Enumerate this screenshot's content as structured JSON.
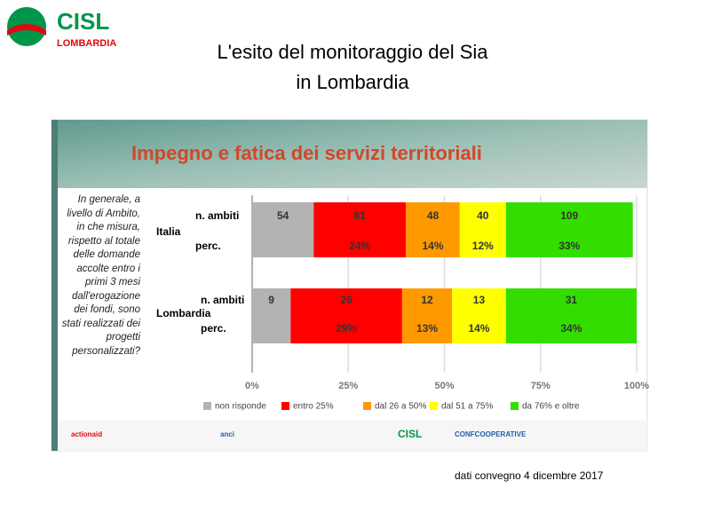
{
  "slide_title": [
    "L'esito del monitoraggio del Sia",
    "in Lombardia"
  ],
  "logo": {
    "name": "CISL",
    "region": "LOMBARDIA"
  },
  "footer": "dati convegno  4 dicembre 2017",
  "chart_data": {
    "type": "bar",
    "orientation": "horizontal",
    "stacked": true,
    "title": "Impegno e fatica dei servizi territoriali",
    "question": "In generale, a livello di Ambito, in che misura, rispetto al totale delle domande accolte entro i primi 3 mesi dall'erogazione dei fondi, sono stati realizzati dei progetti personalizzati?",
    "categories": [
      "Italia",
      "Lombardia"
    ],
    "count_label": "n. ambiti",
    "percent_label": "perc.",
    "xlim": [
      0,
      100
    ],
    "xticks": [
      {
        "value": 0,
        "label": "0%"
      },
      {
        "value": 25,
        "label": "25%"
      },
      {
        "value": 50,
        "label": "50%"
      },
      {
        "value": 75,
        "label": "75%"
      },
      {
        "value": 100,
        "label": "100%"
      }
    ],
    "grid": true,
    "series": [
      {
        "name": "non risponde",
        "color": "#b3b3b3",
        "values": [
          16,
          10
        ],
        "counts": [
          54,
          9
        ],
        "value_labels": [
          null,
          null
        ]
      },
      {
        "name": "entro 25%",
        "color": "#ff0000",
        "values": [
          24,
          29
        ],
        "counts": [
          81,
          26
        ],
        "value_labels": [
          "24%",
          "29%"
        ]
      },
      {
        "name": "dal 26 a 50%",
        "color": "#ff9900",
        "values": [
          14,
          13
        ],
        "counts": [
          48,
          12
        ],
        "value_labels": [
          "14%",
          "13%"
        ]
      },
      {
        "name": "dal 51 a 75%",
        "color": "#ffff00",
        "values": [
          12,
          14
        ],
        "counts": [
          40,
          13
        ],
        "value_labels": [
          "12%",
          "14%"
        ]
      },
      {
        "name": "da 76% e oltre",
        "color": "#33dd00",
        "values": [
          33,
          34
        ],
        "counts": [
          109,
          31
        ],
        "value_labels": [
          "33%",
          "34%"
        ]
      }
    ],
    "partner_logos": [
      "actionaid",
      "anci",
      "CISL",
      "CONFCOOPERATIVE"
    ]
  }
}
